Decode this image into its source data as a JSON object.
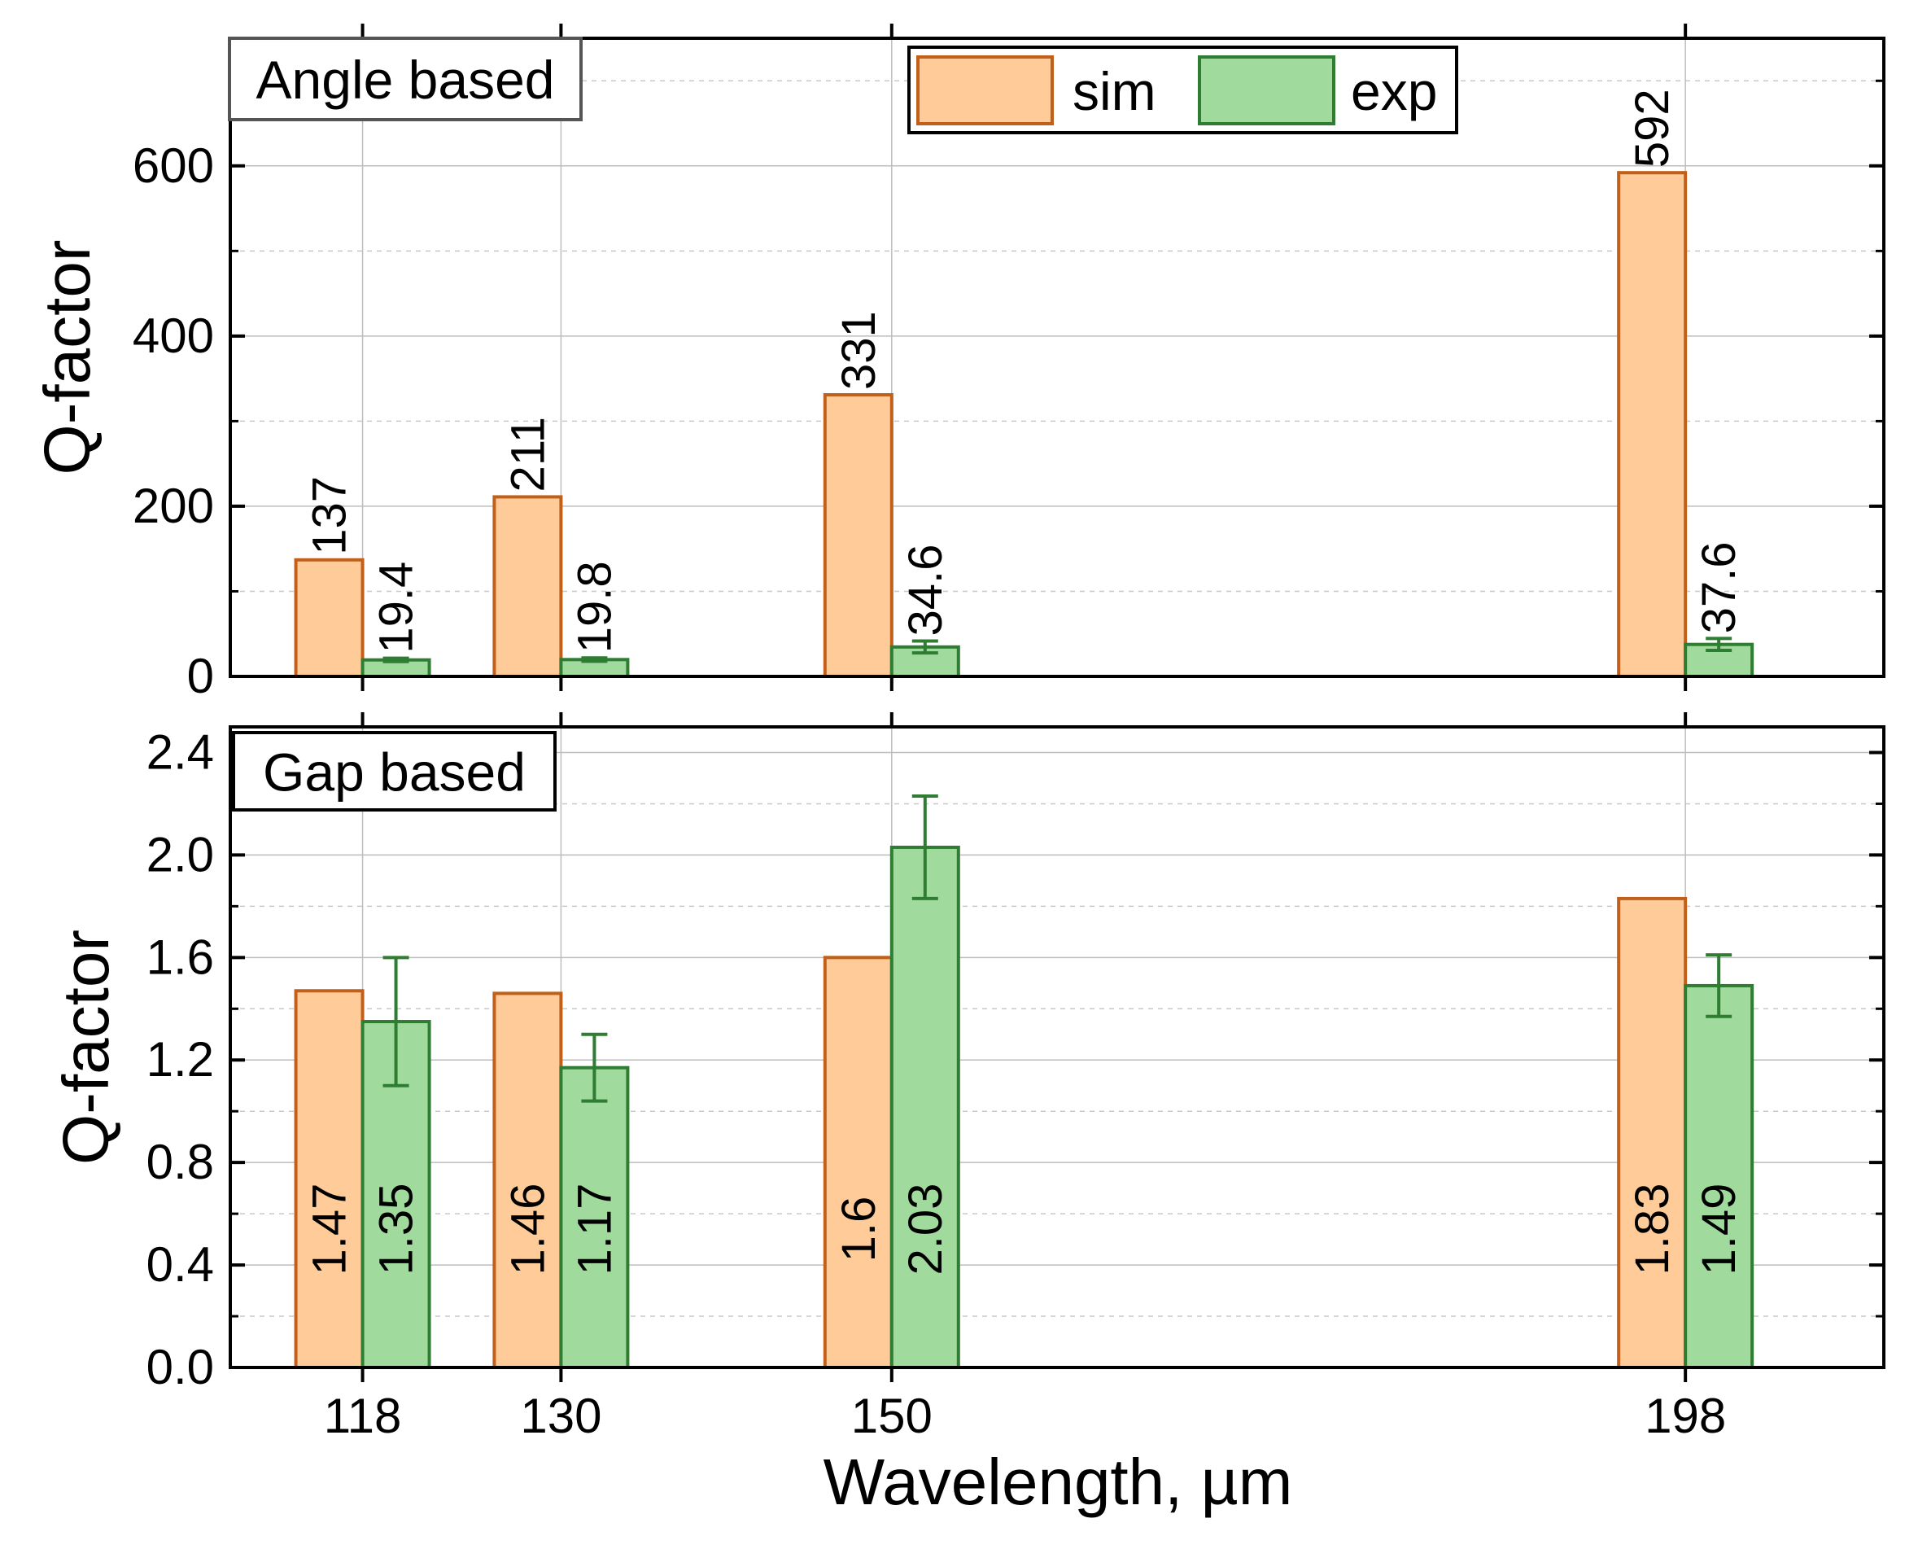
{
  "chart_data": [
    {
      "type": "bar",
      "title": "Angle based",
      "xlabel": "",
      "ylabel": "Q-factor",
      "categories": [
        "118",
        "130",
        "150",
        "198"
      ],
      "x": [
        118,
        130,
        150,
        198
      ],
      "xlim": [
        110,
        210
      ],
      "ylim": [
        0,
        750
      ],
      "yticks": [
        0,
        200,
        400,
        600
      ],
      "ytick_labels": [
        "0",
        "200",
        "400",
        "600"
      ],
      "grid": true,
      "legend": "top-center",
      "series": [
        {
          "name": "sim",
          "values": [
            137,
            211,
            331,
            592
          ],
          "labels": [
            "137",
            "211",
            "331",
            "592"
          ],
          "error": [
            0,
            0,
            0,
            0
          ],
          "color": "#FFCC99",
          "edge": "#C0601A"
        },
        {
          "name": "exp",
          "values": [
            19.4,
            19.8,
            34.6,
            37.6
          ],
          "labels": [
            "19.4",
            "19.8",
            "34.6",
            "37.6"
          ],
          "error": [
            2,
            2,
            7,
            7
          ],
          "color": "#A0DA9C",
          "edge": "#2E7D32"
        }
      ]
    },
    {
      "type": "bar",
      "title": "Gap based",
      "xlabel": "Wavelength, µm",
      "ylabel": "Q-factor",
      "categories": [
        "118",
        "130",
        "150",
        "198"
      ],
      "x": [
        118,
        130,
        150,
        198
      ],
      "xlim": [
        110,
        210
      ],
      "ylim": [
        0,
        2.5
      ],
      "yticks": [
        0,
        0.4,
        0.8,
        1.2,
        1.6,
        2.0,
        2.4
      ],
      "ytick_labels": [
        "0.0",
        "0.4",
        "0.8",
        "1.2",
        "1.6",
        "2.0",
        "2.4"
      ],
      "grid": true,
      "series": [
        {
          "name": "sim",
          "values": [
            1.47,
            1.46,
            1.6,
            1.83
          ],
          "labels": [
            "1.47",
            "1.46",
            "1.6",
            "1.83"
          ],
          "error": [
            0,
            0,
            0,
            0
          ],
          "color": "#FFCC99",
          "edge": "#C0601A"
        },
        {
          "name": "exp",
          "values": [
            1.35,
            1.17,
            2.03,
            1.49
          ],
          "labels": [
            "1.35",
            "1.17",
            "2.03",
            "1.49"
          ],
          "error": [
            0.25,
            0.13,
            0.2,
            0.12
          ],
          "color": "#A0DA9C",
          "edge": "#2E7D32"
        }
      ]
    }
  ]
}
